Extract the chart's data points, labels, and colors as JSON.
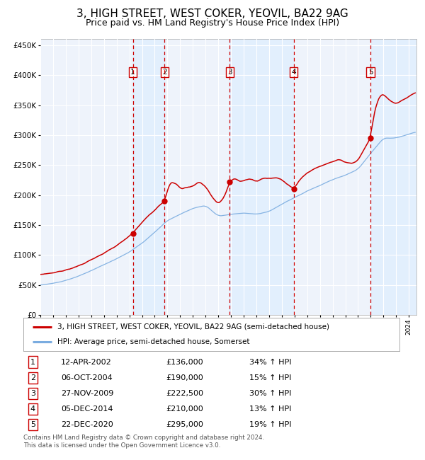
{
  "title": "3, HIGH STREET, WEST COKER, YEOVIL, BA22 9AG",
  "subtitle": "Price paid vs. HM Land Registry's House Price Index (HPI)",
  "title_fontsize": 11,
  "subtitle_fontsize": 9,
  "ylim": [
    0,
    460000
  ],
  "yticks": [
    0,
    50000,
    100000,
    150000,
    200000,
    250000,
    300000,
    350000,
    400000,
    450000
  ],
  "ytick_labels": [
    "£0",
    "£50K",
    "£100K",
    "£150K",
    "£200K",
    "£250K",
    "£300K",
    "£350K",
    "£400K",
    "£450K"
  ],
  "hpi_color": "#7aace0",
  "price_color": "#cc0000",
  "shade_color": "#ddeeff",
  "background_color": "#eef3fb",
  "purchases": [
    {
      "num": 1,
      "date": "12-APR-2002",
      "year": 2002.28,
      "price": 136000,
      "pct": "34%",
      "dir": "↑"
    },
    {
      "num": 2,
      "date": "06-OCT-2004",
      "year": 2004.77,
      "price": 190000,
      "pct": "15%",
      "dir": "↑"
    },
    {
      "num": 3,
      "date": "27-NOV-2009",
      "year": 2009.9,
      "price": 222500,
      "pct": "30%",
      "dir": "↑"
    },
    {
      "num": 4,
      "date": "05-DEC-2014",
      "year": 2014.93,
      "price": 210000,
      "pct": "13%",
      "dir": "↑"
    },
    {
      "num": 5,
      "date": "22-DEC-2020",
      "year": 2020.98,
      "price": 295000,
      "pct": "19%",
      "dir": "↑"
    }
  ],
  "legend_line1": "3, HIGH STREET, WEST COKER, YEOVIL, BA22 9AG (semi-detached house)",
  "legend_line2": "HPI: Average price, semi-detached house, Somerset",
  "footnote": "Contains HM Land Registry data © Crown copyright and database right 2024.\nThis data is licensed under the Open Government Licence v3.0.",
  "xmin": 1995,
  "xmax": 2024.6
}
